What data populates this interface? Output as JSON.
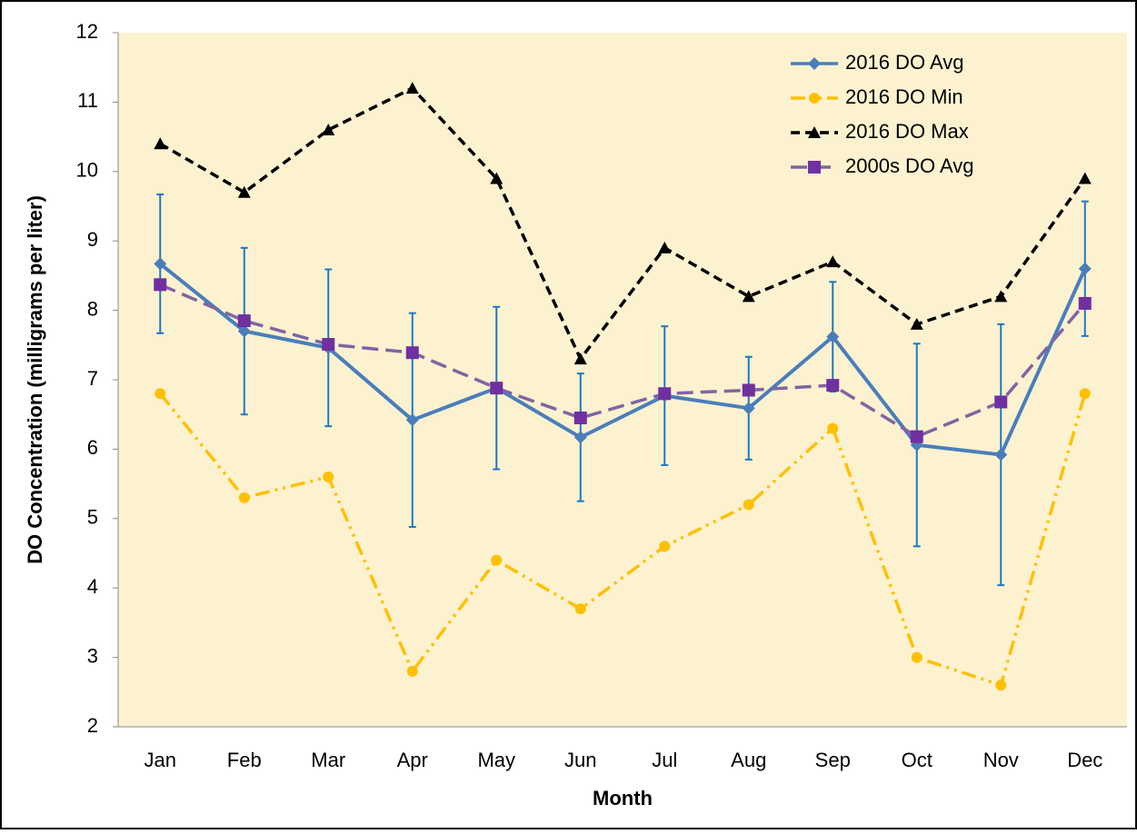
{
  "chart_data": {
    "type": "line",
    "xlabel": "Month",
    "ylabel": "DO Concentration (milligrams per liter)",
    "categories": [
      "Jan",
      "Feb",
      "Mar",
      "Apr",
      "May",
      "Jun",
      "Jul",
      "Aug",
      "Sep",
      "Oct",
      "Nov",
      "Dec"
    ],
    "series": [
      {
        "name": "2016 DO Avg",
        "color": "#4a7ebb",
        "marker": "diamond",
        "dash": "solid",
        "values": [
          8.67,
          7.7,
          7.46,
          6.42,
          6.88,
          6.17,
          6.77,
          6.59,
          7.62,
          6.06,
          5.92,
          8.6
        ],
        "errors": [
          1.0,
          1.2,
          1.13,
          1.54,
          1.17,
          0.92,
          1.0,
          0.74,
          0.79,
          1.46,
          1.88,
          0.97
        ],
        "error_color": "#1f78c1"
      },
      {
        "name": "2016 DO Min",
        "color": "#ffc000",
        "marker": "circle",
        "dash": "dashdotdot",
        "values": [
          6.8,
          5.3,
          5.6,
          2.8,
          4.4,
          3.7,
          4.6,
          5.2,
          6.3,
          3.0,
          2.6,
          6.8
        ]
      },
      {
        "name": "2016 DO Max",
        "color": "#000000",
        "marker": "triangle",
        "dash": "dash",
        "values": [
          10.4,
          9.7,
          10.6,
          11.2,
          9.9,
          7.3,
          8.9,
          8.2,
          8.7,
          7.8,
          8.2,
          9.9
        ]
      },
      {
        "name": "2000s DO Avg",
        "color": "#8064a2",
        "marker_color": "#7030a0",
        "marker": "square",
        "dash": "longdash",
        "values": [
          8.37,
          7.85,
          7.51,
          7.39,
          6.88,
          6.45,
          6.8,
          6.85,
          6.92,
          6.18,
          6.68,
          8.1
        ]
      }
    ],
    "ylim": [
      2,
      12
    ],
    "yticks": [
      2,
      3,
      4,
      5,
      6,
      7,
      8,
      9,
      10,
      11,
      12
    ],
    "grid": false,
    "legend": "upper right",
    "plot_background": "#fdf2d0"
  }
}
